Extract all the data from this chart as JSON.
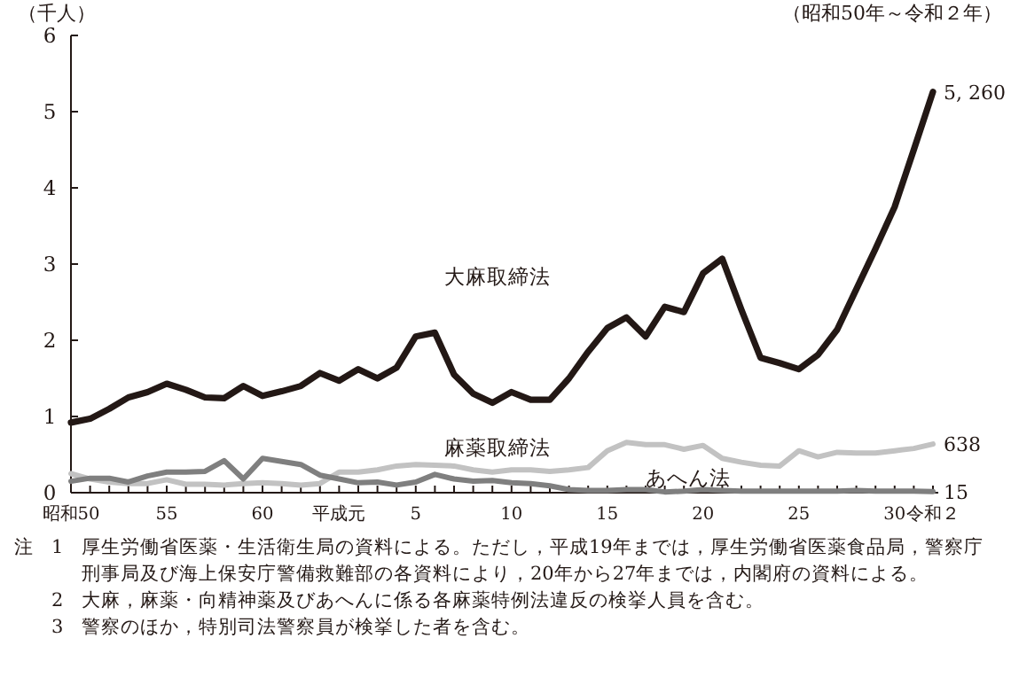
{
  "chart_data": {
    "type": "line",
    "subtitle": "（昭和50年～令和２年）",
    "ylabel": "（千人）",
    "categories": [
      "昭和50",
      null,
      null,
      null,
      null,
      "55",
      null,
      null,
      null,
      null,
      "60",
      null,
      null,
      null,
      "平成元",
      null,
      null,
      null,
      "5",
      null,
      null,
      null,
      null,
      "10",
      null,
      null,
      null,
      null,
      "15",
      null,
      null,
      null,
      null,
      "20",
      null,
      null,
      null,
      null,
      "25",
      null,
      null,
      null,
      null,
      "30",
      null,
      "令和２"
    ],
    "series": [
      {
        "name": "大麻取締法",
        "color": "#231815",
        "values": [
          0.92,
          0.97,
          1.1,
          1.25,
          1.32,
          1.43,
          1.35,
          1.25,
          1.24,
          1.4,
          1.27,
          1.33,
          1.4,
          1.57,
          1.47,
          1.62,
          1.5,
          1.64,
          2.05,
          2.1,
          1.55,
          1.3,
          1.18,
          1.32,
          1.22,
          1.22,
          1.5,
          1.85,
          2.16,
          2.3,
          2.05,
          2.44,
          2.37,
          2.88,
          3.07,
          2.4,
          1.77,
          1.7,
          1.62,
          1.81,
          2.14,
          2.67,
          3.2,
          3.75,
          4.5,
          5.26
        ]
      },
      {
        "name": "麻薬取締法",
        "color": "#c2c2c2",
        "values": [
          0.25,
          0.18,
          0.14,
          0.12,
          0.12,
          0.17,
          0.11,
          0.11,
          0.1,
          0.12,
          0.13,
          0.12,
          0.1,
          0.12,
          0.27,
          0.27,
          0.3,
          0.35,
          0.37,
          0.36,
          0.35,
          0.3,
          0.27,
          0.3,
          0.3,
          0.28,
          0.3,
          0.33,
          0.55,
          0.66,
          0.63,
          0.63,
          0.57,
          0.62,
          0.45,
          0.4,
          0.36,
          0.35,
          0.55,
          0.47,
          0.53,
          0.52,
          0.52,
          0.55,
          0.58,
          0.638
        ]
      },
      {
        "name": "あへん法",
        "color": "#7f7f7f",
        "values": [
          0.15,
          0.19,
          0.19,
          0.14,
          0.22,
          0.27,
          0.27,
          0.28,
          0.42,
          0.18,
          0.45,
          0.41,
          0.37,
          0.23,
          0.18,
          0.13,
          0.14,
          0.1,
          0.14,
          0.24,
          0.18,
          0.15,
          0.16,
          0.13,
          0.12,
          0.09,
          0.04,
          0.03,
          0.03,
          0.04,
          0.04,
          0.01,
          0.02,
          0.04,
          0.03,
          0.02,
          0.02,
          0.02,
          0.02,
          0.02,
          0.02,
          0.03,
          0.02,
          0.02,
          0.02,
          0.015
        ]
      }
    ],
    "ylim": [
      0,
      6
    ],
    "yticks": [
      0,
      1,
      2,
      3,
      4,
      5,
      6
    ],
    "grid": false,
    "marker": "none",
    "line_style": "solid",
    "annotations": [
      {
        "text": "5, 260",
        "x": "令和２",
        "y": 5.26
      },
      {
        "text": "638",
        "x": "令和２",
        "y": 0.638
      },
      {
        "text": "15",
        "x": "令和２",
        "y": 0.015
      },
      "注",
      "1　厚生労働省医薬・生活衛生局の資料による。ただし，平成19年までは，厚生労働省医薬食品局，警察庁刑事局及び海上保安庁警備救難部の各資料により，20年から27年までは，内閣府の資料による。",
      "2　大麻，麻薬・向精神薬及びあへんに係る各麻薬特例法違反の検挙人員を含む。",
      "3　警察のほか，特別司法警察員が検挙した者を含む。"
    ]
  }
}
